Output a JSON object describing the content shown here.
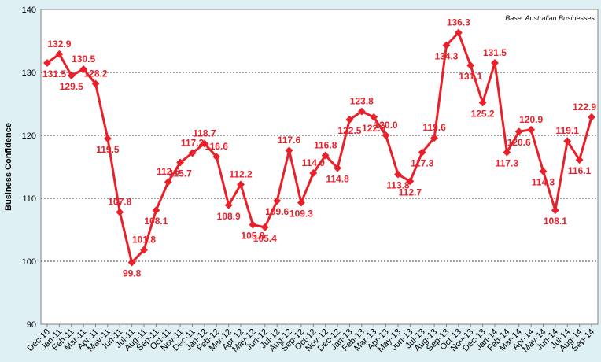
{
  "chart_data": {
    "type": "line",
    "ylabel": "Business Confidence",
    "annotation": "Base: Australian Businesses",
    "ylim": [
      90,
      140
    ],
    "yticks": [
      90,
      100,
      110,
      120,
      130,
      140
    ],
    "grid": true,
    "series_color": "#e8202a",
    "categories": [
      "Dec-10",
      "Jan-11",
      "Feb-11",
      "Mar-11",
      "Apr-11",
      "May-11",
      "Jun-11",
      "Jul-11",
      "Aug-11",
      "Sep-11",
      "Oct-11",
      "Nov-11",
      "Dec-11",
      "Jan-12",
      "Feb-12",
      "Mar-12",
      "Apr-12",
      "May-12",
      "Jun-12",
      "Jul-12",
      "Aug-12",
      "Sep-12",
      "Oct-12",
      "Nov-12",
      "Dec-12",
      "Jan-13",
      "Feb-13",
      "Mar-13",
      "Apr-13",
      "May-13",
      "Jun-13",
      "Jul-13",
      "Aug-13",
      "Sep-13",
      "Oct-13",
      "Nov-13",
      "Dec-13",
      "Jan-14",
      "Feb-14",
      "Mar-14",
      "Apr-14",
      "May-14",
      "Jun-14",
      "Jul-14",
      "Aug-14",
      "Sep-14"
    ],
    "values": [
      131.5,
      132.9,
      129.5,
      130.5,
      128.2,
      119.5,
      107.8,
      99.8,
      101.8,
      108.1,
      112.6,
      115.7,
      117.2,
      118.7,
      116.6,
      108.9,
      112.2,
      105.8,
      105.4,
      109.6,
      117.6,
      109.3,
      114.0,
      116.8,
      114.8,
      122.5,
      123.8,
      122.9,
      120.0,
      113.8,
      112.7,
      117.3,
      119.6,
      134.3,
      136.3,
      131.1,
      125.2,
      131.5,
      117.3,
      120.6,
      120.9,
      114.3,
      108.1,
      119.1,
      116.1,
      122.9
    ]
  }
}
